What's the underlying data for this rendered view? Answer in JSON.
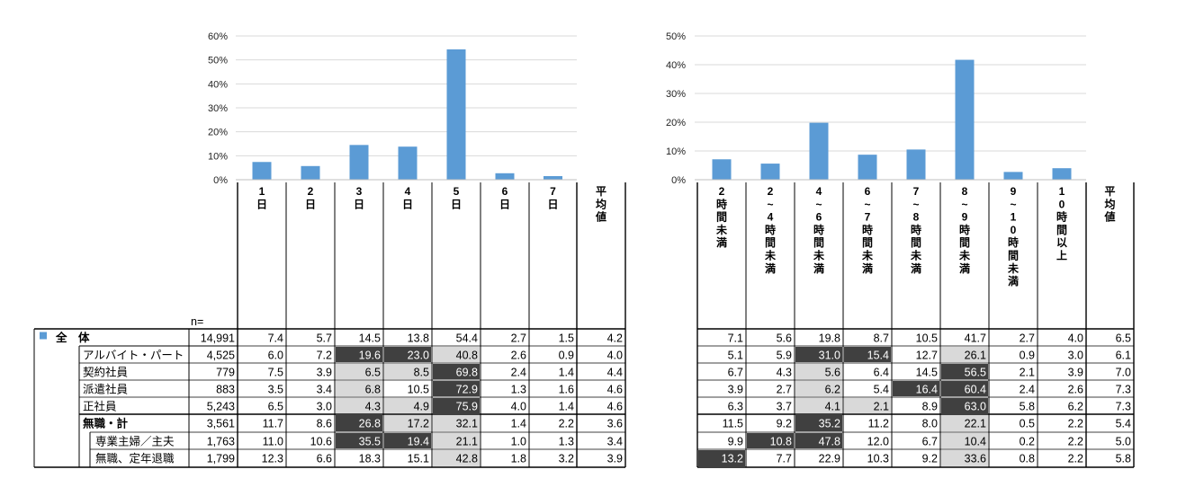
{
  "colors": {
    "bar": "#5B9BD5",
    "dark": "#404040",
    "light": "#D9D9D9",
    "grid": "#D9D9D9"
  },
  "n_label": "n=",
  "legend_marker": "■",
  "rows": [
    {
      "label": "全　体",
      "n": "14,991"
    },
    {
      "label": "アルバイト・パート",
      "n": "4,525"
    },
    {
      "label": "契約社員",
      "n": "779"
    },
    {
      "label": "派遣社員",
      "n": "883"
    },
    {
      "label": "正社員",
      "n": "5,243"
    },
    {
      "label": "無職・計",
      "n": "3,561"
    },
    {
      "label": "専業主婦／主夫",
      "n": "1,763"
    },
    {
      "label": "無職、定年退職",
      "n": "1,799"
    }
  ],
  "chart_data": [
    {
      "type": "bar",
      "title": "",
      "ylim": [
        0,
        60
      ],
      "yticks": [
        "0%",
        "10%",
        "20%",
        "30%",
        "40%",
        "50%",
        "60%"
      ],
      "categories": [
        "1日",
        "2日",
        "3日",
        "4日",
        "5日",
        "6日",
        "7日"
      ],
      "values": [
        7.4,
        5.7,
        14.5,
        13.8,
        54.4,
        2.7,
        1.5
      ],
      "avg_label": "平均値",
      "table": [
        [
          "7.4",
          "5.7",
          "14.5",
          "13.8",
          "54.4",
          "2.7",
          "1.5",
          "4.2"
        ],
        [
          "6.0",
          "7.2",
          "19.6",
          "23.0",
          "40.8",
          "2.6",
          "0.9",
          "4.0"
        ],
        [
          "7.5",
          "3.9",
          "6.5",
          "8.5",
          "69.8",
          "2.4",
          "1.4",
          "4.4"
        ],
        [
          "3.5",
          "3.4",
          "6.8",
          "10.5",
          "72.9",
          "1.3",
          "1.6",
          "4.6"
        ],
        [
          "6.5",
          "3.0",
          "4.3",
          "4.9",
          "75.9",
          "4.0",
          "1.4",
          "4.6"
        ],
        [
          "11.7",
          "8.6",
          "26.8",
          "17.2",
          "32.1",
          "1.4",
          "2.2",
          "3.6"
        ],
        [
          "11.0",
          "10.6",
          "35.5",
          "19.4",
          "21.1",
          "1.0",
          "1.3",
          "3.4"
        ],
        [
          "12.3",
          "6.6",
          "18.3",
          "15.1",
          "42.8",
          "1.8",
          "3.2",
          "3.9"
        ]
      ],
      "shading": [
        [
          "",
          "",
          "",
          "",
          "",
          "",
          "",
          ""
        ],
        [
          "",
          "",
          "D",
          "D",
          "L",
          "",
          "",
          ""
        ],
        [
          "",
          "",
          "L",
          "L",
          "D",
          "",
          "",
          ""
        ],
        [
          "",
          "",
          "L",
          "",
          "D",
          "",
          "",
          ""
        ],
        [
          "",
          "",
          "L",
          "L",
          "D",
          "",
          "",
          ""
        ],
        [
          "",
          "",
          "D",
          "L",
          "L",
          "",
          "",
          ""
        ],
        [
          "",
          "",
          "D",
          "D",
          "L",
          "",
          "",
          ""
        ],
        [
          "",
          "",
          "",
          "",
          "L",
          "",
          "",
          ""
        ]
      ]
    },
    {
      "type": "bar",
      "title": "",
      "ylim": [
        0,
        50
      ],
      "yticks": [
        "0%",
        "10%",
        "20%",
        "30%",
        "40%",
        "50%"
      ],
      "categories": [
        "2時間未満",
        "2〜4時間未満",
        "4〜6時間未満",
        "6〜7時間未満",
        "7〜8時間未満",
        "8〜9時間未満",
        "9〜10時間未満",
        "10時間以上"
      ],
      "vertical_labels": [
        "2時間未満",
        "2~4時間未満",
        "4~6時間未満",
        "6~7時間未満",
        "7~8時間未満",
        "8~9時間未満",
        "9~10時間未満",
        "10時間以上"
      ],
      "values": [
        7.1,
        5.6,
        19.8,
        8.7,
        10.5,
        41.7,
        2.7,
        4.0
      ],
      "avg_label": "平均値",
      "table": [
        [
          "7.1",
          "5.6",
          "19.8",
          "8.7",
          "10.5",
          "41.7",
          "2.7",
          "4.0",
          "6.5"
        ],
        [
          "5.1",
          "5.9",
          "31.0",
          "15.4",
          "12.7",
          "26.1",
          "0.9",
          "3.0",
          "6.1"
        ],
        [
          "6.7",
          "4.3",
          "5.6",
          "6.4",
          "14.5",
          "56.5",
          "2.1",
          "3.9",
          "7.0"
        ],
        [
          "3.9",
          "2.7",
          "6.2",
          "5.4",
          "16.4",
          "60.4",
          "2.4",
          "2.6",
          "7.3"
        ],
        [
          "6.3",
          "3.7",
          "4.1",
          "2.1",
          "8.9",
          "63.0",
          "5.8",
          "6.2",
          "7.3"
        ],
        [
          "11.5",
          "9.2",
          "35.2",
          "11.2",
          "8.0",
          "22.1",
          "0.5",
          "2.2",
          "5.4"
        ],
        [
          "9.9",
          "10.8",
          "47.8",
          "12.0",
          "6.7",
          "10.4",
          "0.2",
          "2.2",
          "5.0"
        ],
        [
          "13.2",
          "7.7",
          "22.9",
          "10.3",
          "9.2",
          "33.6",
          "0.8",
          "2.2",
          "5.8"
        ]
      ],
      "shading": [
        [
          "",
          "",
          "",
          "",
          "",
          "",
          "",
          "",
          ""
        ],
        [
          "",
          "",
          "D",
          "D",
          "",
          "L",
          "",
          "",
          ""
        ],
        [
          "",
          "",
          "L",
          "",
          "",
          "D",
          "",
          "",
          ""
        ],
        [
          "",
          "",
          "L",
          "",
          "D",
          "D",
          "",
          "",
          ""
        ],
        [
          "",
          "",
          "L",
          "L",
          "",
          "D",
          "",
          "",
          ""
        ],
        [
          "",
          "",
          "D",
          "",
          "",
          "L",
          "",
          "",
          ""
        ],
        [
          "",
          "D",
          "D",
          "",
          "",
          "L",
          "",
          "",
          ""
        ],
        [
          "D",
          "",
          "",
          "",
          "",
          "L",
          "",
          "",
          ""
        ]
      ]
    }
  ]
}
